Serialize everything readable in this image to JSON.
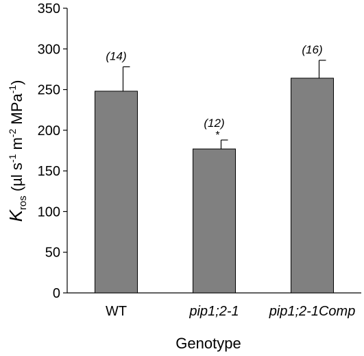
{
  "chart_data": {
    "type": "bar",
    "categories": [
      "WT",
      "pip1;2-1",
      "pip1;2-1Comp"
    ],
    "category_italic": [
      false,
      true,
      true
    ],
    "values": [
      248,
      177,
      264
    ],
    "errors": [
      30,
      11,
      22
    ],
    "annotations": [
      "(14)",
      "(12)",
      "(16)"
    ],
    "significance": [
      "",
      "*",
      ""
    ],
    "ylim": [
      0,
      350
    ],
    "yticks": [
      0,
      50,
      100,
      150,
      200,
      250,
      300,
      350
    ],
    "xlabel": "Genotype",
    "ylabel": {
      "symbol": "K",
      "subscript": "ros",
      "open": " (µl s",
      "exp1": "-1",
      "mid1": " m",
      "exp2": "-2",
      "mid2": " MPa",
      "exp3": "-1",
      "close": ")"
    },
    "bar_color": "#808080",
    "grid": false
  }
}
